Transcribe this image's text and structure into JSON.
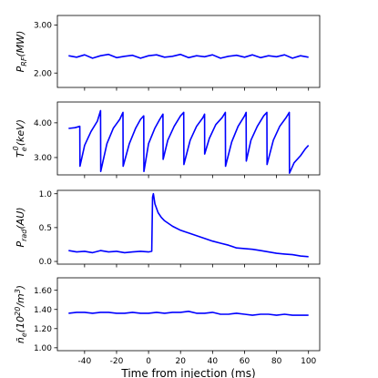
{
  "chart_data": [
    {
      "type": "line",
      "ylabel": "P_RF(MW)",
      "ylabel_main": "P",
      "ylabel_sub": "RF",
      "ylabel_tail": "(MW)",
      "ylim": [
        1.7,
        3.2
      ],
      "yticks": [
        2.0,
        3.0
      ],
      "ytick_labels": [
        "2.00",
        "3.00"
      ],
      "xlim": [
        -57,
        107
      ],
      "color": "#0000ff",
      "series": [
        {
          "x": [
            -50,
            -45,
            -40,
            -35,
            -30,
            -25,
            -20,
            -15,
            -10,
            -5,
            0,
            5,
            10,
            15,
            20,
            25,
            30,
            35,
            40,
            45,
            50,
            55,
            60,
            65,
            70,
            75,
            80,
            85,
            90,
            95,
            100
          ],
          "values": [
            2.36,
            2.33,
            2.38,
            2.31,
            2.36,
            2.39,
            2.32,
            2.35,
            2.37,
            2.31,
            2.36,
            2.38,
            2.33,
            2.35,
            2.39,
            2.32,
            2.36,
            2.34,
            2.38,
            2.31,
            2.35,
            2.37,
            2.33,
            2.38,
            2.32,
            2.36,
            2.34,
            2.38,
            2.31,
            2.36,
            2.33
          ]
        }
      ]
    },
    {
      "type": "line",
      "ylabel": "T_e^0(keV)",
      "ylabel_main": "T",
      "ylabel_sub": "e",
      "ylabel_sup": "0",
      "ylabel_tail": "(keV)",
      "ylim": [
        2.5,
        4.6
      ],
      "yticks": [
        3.0,
        4.0
      ],
      "ytick_labels": [
        "3.00",
        "4.00"
      ],
      "xlim": [
        -57,
        107
      ],
      "color": "#0000ff",
      "series": [
        {
          "x": [
            -50,
            -46,
            -43,
            -42.9,
            -40,
            -36,
            -32,
            -30,
            -29.9,
            -26,
            -22,
            -18,
            -16,
            -15.9,
            -12,
            -8,
            -5,
            -3,
            -2.9,
            0,
            4,
            7,
            9,
            9.1,
            12,
            16,
            20,
            22,
            22.1,
            26,
            30,
            34,
            35,
            35.1,
            38,
            42,
            46,
            48,
            48.1,
            52,
            56,
            60,
            61,
            61.1,
            64,
            68,
            72,
            74,
            74.1,
            78,
            82,
            86,
            88,
            88.1,
            91,
            95,
            98,
            100
          ],
          "values": [
            3.84,
            3.86,
            3.9,
            2.75,
            3.35,
            3.75,
            4.05,
            4.35,
            2.6,
            3.4,
            3.85,
            4.1,
            4.3,
            2.75,
            3.4,
            3.85,
            4.1,
            4.2,
            2.6,
            3.4,
            3.85,
            4.1,
            4.25,
            2.95,
            3.5,
            3.9,
            4.2,
            4.3,
            2.8,
            3.5,
            3.9,
            4.15,
            4.25,
            3.1,
            3.55,
            3.95,
            4.15,
            4.3,
            2.75,
            3.45,
            3.9,
            4.2,
            4.3,
            2.9,
            3.5,
            3.9,
            4.2,
            4.3,
            2.8,
            3.5,
            3.9,
            4.15,
            4.3,
            2.55,
            2.85,
            3.05,
            3.25,
            3.35
          ]
        }
      ]
    },
    {
      "type": "line",
      "ylabel": "P_rad(AU)",
      "ylabel_main": "P",
      "ylabel_sub": "rad",
      "ylabel_tail": "(AU)",
      "ylim": [
        -0.04,
        1.05
      ],
      "yticks": [
        0.0,
        0.5,
        1.0
      ],
      "ytick_labels": [
        "0.0",
        "0.5",
        "1.0"
      ],
      "xlim": [
        -57,
        107
      ],
      "color": "#0000ff",
      "series": [
        {
          "x": [
            -50,
            -45,
            -40,
            -35,
            -30,
            -25,
            -20,
            -15,
            -10,
            -5,
            0,
            2,
            2.5,
            3,
            4,
            6,
            8,
            10,
            15,
            20,
            25,
            30,
            35,
            40,
            45,
            50,
            55,
            60,
            65,
            70,
            75,
            80,
            85,
            90,
            95,
            100
          ],
          "values": [
            0.16,
            0.14,
            0.15,
            0.13,
            0.16,
            0.14,
            0.15,
            0.13,
            0.14,
            0.15,
            0.14,
            0.15,
            0.95,
            1.0,
            0.85,
            0.72,
            0.65,
            0.6,
            0.52,
            0.46,
            0.42,
            0.38,
            0.34,
            0.3,
            0.27,
            0.24,
            0.2,
            0.19,
            0.18,
            0.16,
            0.14,
            0.12,
            0.11,
            0.1,
            0.08,
            0.07
          ]
        }
      ]
    },
    {
      "type": "line",
      "ylabel": "n̄_e(10^20/m^3)",
      "ylabel_main": "n̄",
      "ylabel_sub": "e",
      "ylabel_tail": "(10",
      "ylabel_tail_sup": "20",
      "ylabel_tail_end": "/m",
      "ylabel_tail_sup2": "3",
      "ylabel_tail_close": ")",
      "ylim": [
        0.97,
        1.73
      ],
      "yticks": [
        1.0,
        1.2,
        1.4,
        1.6
      ],
      "ytick_labels": [
        "1.00",
        "1.20",
        "1.40",
        "1.60"
      ],
      "xlim": [
        -57,
        107
      ],
      "xticks": [
        -40,
        -20,
        0,
        20,
        40,
        60,
        80,
        100
      ],
      "xtick_labels": [
        "-40",
        "-20",
        "0",
        "20",
        "40",
        "60",
        "80",
        "100"
      ],
      "xlabel": "Time from injection (ms)",
      "color": "#0000ff",
      "series": [
        {
          "x": [
            -50,
            -45,
            -40,
            -35,
            -30,
            -25,
            -20,
            -15,
            -10,
            -5,
            0,
            5,
            10,
            15,
            20,
            25,
            30,
            35,
            40,
            45,
            50,
            55,
            60,
            65,
            70,
            75,
            80,
            85,
            90,
            95,
            100
          ],
          "values": [
            1.36,
            1.37,
            1.37,
            1.36,
            1.37,
            1.37,
            1.36,
            1.36,
            1.37,
            1.36,
            1.36,
            1.37,
            1.36,
            1.37,
            1.37,
            1.38,
            1.36,
            1.36,
            1.37,
            1.35,
            1.35,
            1.36,
            1.35,
            1.34,
            1.35,
            1.35,
            1.34,
            1.35,
            1.34,
            1.34,
            1.34
          ]
        }
      ]
    }
  ]
}
